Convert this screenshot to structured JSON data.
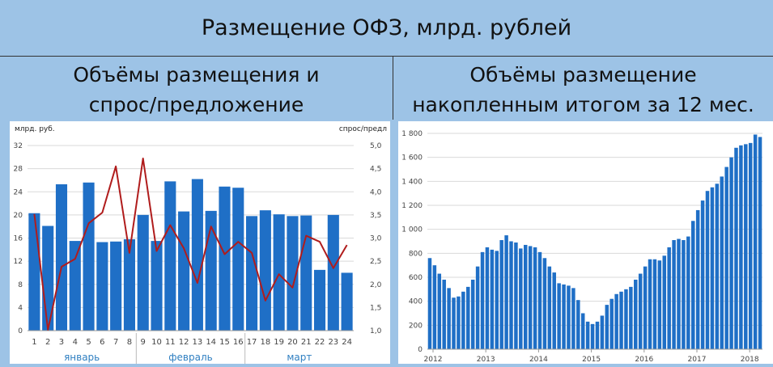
{
  "header": {
    "title": "Размещение ОФЗ, млрд. рублей",
    "left_title_line1": "Объёмы размещения и",
    "left_title_line2": "спрос/предложение",
    "right_title_line1": "Объёмы размещение",
    "right_title_line2": "накопленным итогом за 12 мес."
  },
  "colors": {
    "bar": "#1f6fc6",
    "line": "#b01c1c",
    "month": "#2f7fc1",
    "grid": "#d9d9d9"
  },
  "chart_data": [
    {
      "type": "bar",
      "ylabel": "млрд. руб.",
      "y2label": "спрос/предл",
      "categories": [
        "1",
        "2",
        "3",
        "4",
        "5",
        "6",
        "7",
        "8",
        "9",
        "10",
        "11",
        "12",
        "13",
        "14",
        "15",
        "16",
        "17",
        "18",
        "19",
        "20",
        "21",
        "22",
        "23",
        "24"
      ],
      "groups": [
        {
          "label": "январь",
          "from": 1,
          "to": 8
        },
        {
          "label": "февраль",
          "from": 9,
          "to": 16
        },
        {
          "label": "март",
          "from": 17,
          "to": 24
        }
      ],
      "series": [
        {
          "type": "bar",
          "axis": "left",
          "values": [
            20.3,
            18.1,
            25.3,
            15.5,
            25.6,
            15.3,
            15.4,
            15.8,
            20.0,
            15.5,
            25.8,
            20.6,
            26.2,
            20.7,
            24.9,
            24.7,
            19.8,
            20.8,
            20.1,
            19.8,
            19.9,
            10.5,
            20.0,
            10.0
          ]
        },
        {
          "type": "line",
          "axis": "right",
          "values": [
            3.52,
            1.02,
            2.38,
            2.55,
            3.32,
            3.55,
            4.55,
            2.68,
            4.72,
            2.72,
            3.28,
            2.78,
            2.03,
            3.25,
            2.65,
            2.92,
            2.68,
            1.65,
            2.22,
            1.93,
            3.05,
            2.92,
            2.35,
            2.85
          ]
        }
      ],
      "ylim": [
        0,
        32
      ],
      "yticks": [
        "0",
        "4",
        "8",
        "12",
        "16",
        "20",
        "24",
        "28",
        "32"
      ],
      "y2lim": [
        1.0,
        5.0
      ],
      "y2ticks": [
        "1,0",
        "1,5",
        "2,0",
        "2,5",
        "3,0",
        "3,5",
        "4,0",
        "4,5",
        "5,0"
      ]
    },
    {
      "type": "bar",
      "x_labels": [
        "2012",
        "2013",
        "2014",
        "2015",
        "2016",
        "2017",
        "2018"
      ],
      "values": [
        760,
        700,
        630,
        580,
        510,
        430,
        440,
        480,
        520,
        580,
        690,
        810,
        850,
        830,
        820,
        910,
        950,
        900,
        890,
        840,
        870,
        860,
        850,
        810,
        760,
        690,
        640,
        550,
        540,
        530,
        510,
        410,
        300,
        230,
        210,
        230,
        280,
        370,
        420,
        460,
        480,
        500,
        520,
        580,
        630,
        690,
        750,
        750,
        740,
        780,
        850,
        910,
        920,
        910,
        940,
        1070,
        1160,
        1240,
        1320,
        1350,
        1380,
        1440,
        1520,
        1600,
        1680,
        1700,
        1710,
        1720,
        1790,
        1770
      ],
      "ylim": [
        0,
        1800
      ],
      "yticks": [
        "0",
        "200",
        "400",
        "600",
        "800",
        "1 000",
        "1 200",
        "1 400",
        "1 600",
        "1 800"
      ]
    }
  ]
}
